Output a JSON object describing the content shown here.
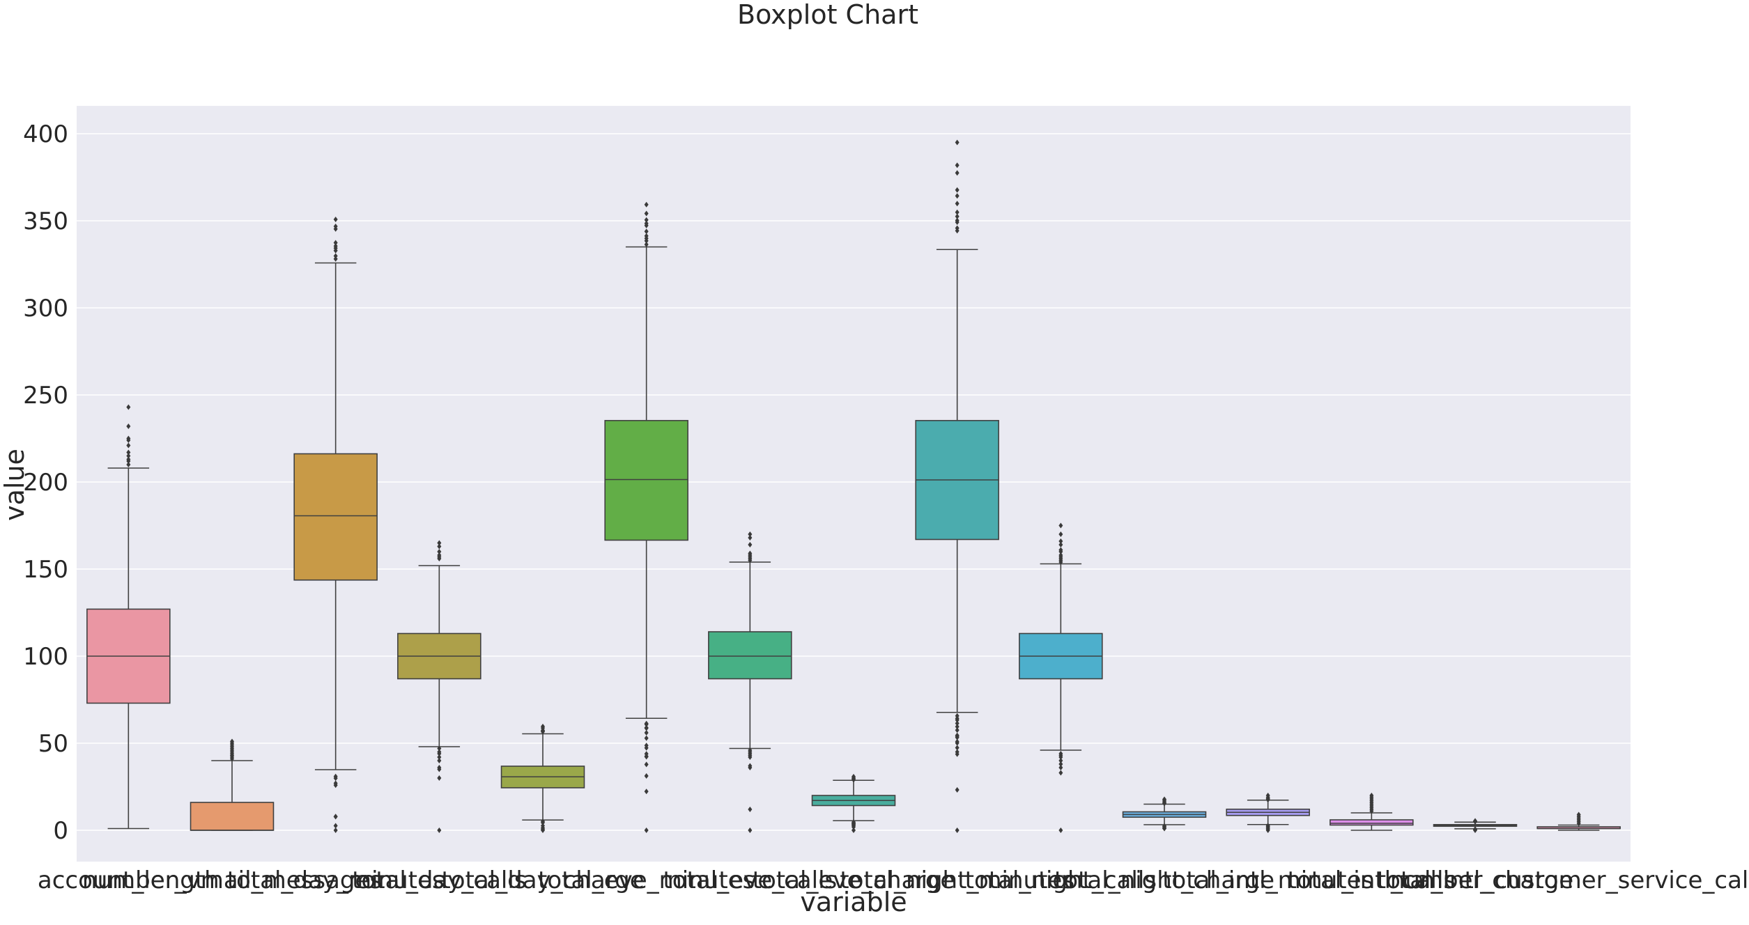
{
  "chart_data": {
    "type": "box",
    "title": "Boxplot Chart",
    "xlabel": "variable",
    "ylabel": "value",
    "ylim": [
      -18,
      416
    ],
    "yticks": [
      0,
      50,
      100,
      150,
      200,
      250,
      300,
      350,
      400
    ],
    "grid": true,
    "legend": "none",
    "categories": [
      "account_length",
      "number_vmail_messages",
      "total_day_minutes",
      "total_day_calls",
      "total_day_charge",
      "total_eve_minutes",
      "total_eve_calls",
      "total_eve_charge",
      "total_night_minutes",
      "total_night_calls",
      "total_night_charge",
      "total_intl_minutes",
      "total_intl_calls",
      "total_intl_charge",
      "number_customer_service_calls"
    ],
    "colors": [
      "#ea96a3",
      "#e59a6e",
      "#c89a47",
      "#ada04a",
      "#9aa84a",
      "#62ae47",
      "#47b085",
      "#49ad9e",
      "#4bacae",
      "#4dafcc",
      "#6bb0e0",
      "#a69cef",
      "#dc8ee8",
      "#e88fca",
      "#e992b4"
    ],
    "boxes": [
      {
        "q1": 73,
        "median": 100,
        "q3": 127,
        "whisker_low": 1,
        "whisker_high": 208,
        "outliers": [
          210,
          212,
          213,
          215,
          217,
          221,
          224,
          225,
          232,
          243
        ]
      },
      {
        "q1": 0,
        "median": 0,
        "q3": 16,
        "whisker_low": 0,
        "whisker_high": 40,
        "outliers": [
          41,
          42,
          43,
          43,
          44,
          45,
          46,
          47,
          48,
          49,
          50,
          51
        ]
      },
      {
        "q1": 143.7,
        "median": 180.6,
        "q3": 216.2,
        "whisker_low": 34.8,
        "whisker_high": 325.8,
        "outliers": [
          0,
          2.6,
          7.8,
          7.9,
          25.9,
          27,
          29.9,
          30.9,
          328.1,
          329.8,
          332.9,
          334.3,
          335.5,
          337.4,
          345.3,
          346.8,
          350.8
        ]
      },
      {
        "q1": 87,
        "median": 100,
        "q3": 113,
        "whisker_low": 48,
        "whisker_high": 152,
        "outliers": [
          0,
          30,
          35,
          36,
          40,
          42,
          44,
          45,
          47,
          156,
          157,
          158,
          160,
          163,
          165
        ]
      },
      {
        "q1": 24.4,
        "median": 30.7,
        "q3": 36.8,
        "whisker_low": 5.9,
        "whisker_high": 55.4,
        "outliers": [
          0,
          0.4,
          1.3,
          1.3,
          2.6,
          4.4,
          5.1,
          56.6,
          57.0,
          57.4,
          58.7,
          59.6
        ]
      },
      {
        "q1": 166.6,
        "median": 201.4,
        "q3": 235.3,
        "whisker_low": 64.3,
        "whisker_high": 335.0,
        "outliers": [
          0,
          22.3,
          31.2,
          37.8,
          42.2,
          42.5,
          43.9,
          47.3,
          48.7,
          52.9,
          56,
          58.6,
          58.9,
          60.8,
          61.3,
          336.4,
          338.5,
          339.9,
          341.3,
          343.9,
          347.3,
          348.5,
          350.5,
          354.2,
          359.3
        ]
      },
      {
        "q1": 87,
        "median": 100,
        "q3": 114,
        "whisker_low": 47,
        "whisker_high": 154,
        "outliers": [
          0,
          12,
          36,
          37,
          42,
          43,
          44,
          45,
          46,
          155,
          156,
          157,
          158,
          159,
          164,
          168,
          170
        ]
      },
      {
        "q1": 14.2,
        "median": 17.1,
        "q3": 20.0,
        "whisker_low": 5.5,
        "whisker_high": 28.7,
        "outliers": [
          0,
          1.9,
          2.7,
          3.2,
          3.6,
          3.9,
          4.1,
          4.7,
          29.0,
          29.6,
          30.0,
          30.8
        ]
      },
      {
        "q1": 167,
        "median": 201.2,
        "q3": 235.3,
        "whisker_low": 67.7,
        "whisker_high": 333.5,
        "outliers": [
          0,
          23.2,
          43.7,
          45,
          47.4,
          50.1,
          50.9,
          53.3,
          54,
          54.5,
          57.5,
          59.5,
          61.4,
          63.3,
          64.2,
          65.7,
          344.3,
          345.8,
          349.2,
          350.2,
          352.5,
          354.9,
          359.9,
          364.3,
          367.7,
          377.5,
          381.9,
          395
        ]
      },
      {
        "q1": 87,
        "median": 100,
        "q3": 113,
        "whisker_low": 46,
        "whisker_high": 153,
        "outliers": [
          0,
          33,
          36,
          38,
          40,
          42,
          43,
          44,
          154,
          155,
          156,
          157,
          158,
          160,
          161,
          164,
          166,
          170,
          175
        ]
      },
      {
        "q1": 7.5,
        "median": 9.05,
        "q3": 10.6,
        "whisker_low": 3.2,
        "whisker_high": 15.0,
        "outliers": [
          1.0,
          1.1,
          1.3,
          2.0,
          2.1,
          2.5,
          15.4,
          15.7,
          16.4,
          17.2,
          17.8
        ]
      },
      {
        "q1": 8.5,
        "median": 10.3,
        "q3": 12.1,
        "whisker_low": 3.3,
        "whisker_high": 17.3,
        "outliers": [
          0,
          0.4,
          1.1,
          1.3,
          2.0,
          2.2,
          2.7,
          17.5,
          18.0,
          18.2,
          18.9,
          20.0
        ]
      },
      {
        "q1": 3,
        "median": 4,
        "q3": 6,
        "whisker_low": 0,
        "whisker_high": 10,
        "outliers": [
          11,
          12,
          13,
          14,
          15,
          16,
          17,
          18,
          19,
          20
        ]
      },
      {
        "q1": 2.3,
        "median": 2.78,
        "q3": 3.27,
        "whisker_low": 0.85,
        "whisker_high": 4.67,
        "outliers": [
          0,
          0.3,
          0.5,
          0.7,
          4.9,
          5.1,
          5.4
        ]
      },
      {
        "q1": 1,
        "median": 1,
        "q3": 2,
        "whisker_low": 0,
        "whisker_high": 3,
        "outliers": [
          4,
          5,
          6,
          7,
          8,
          9
        ]
      }
    ]
  }
}
